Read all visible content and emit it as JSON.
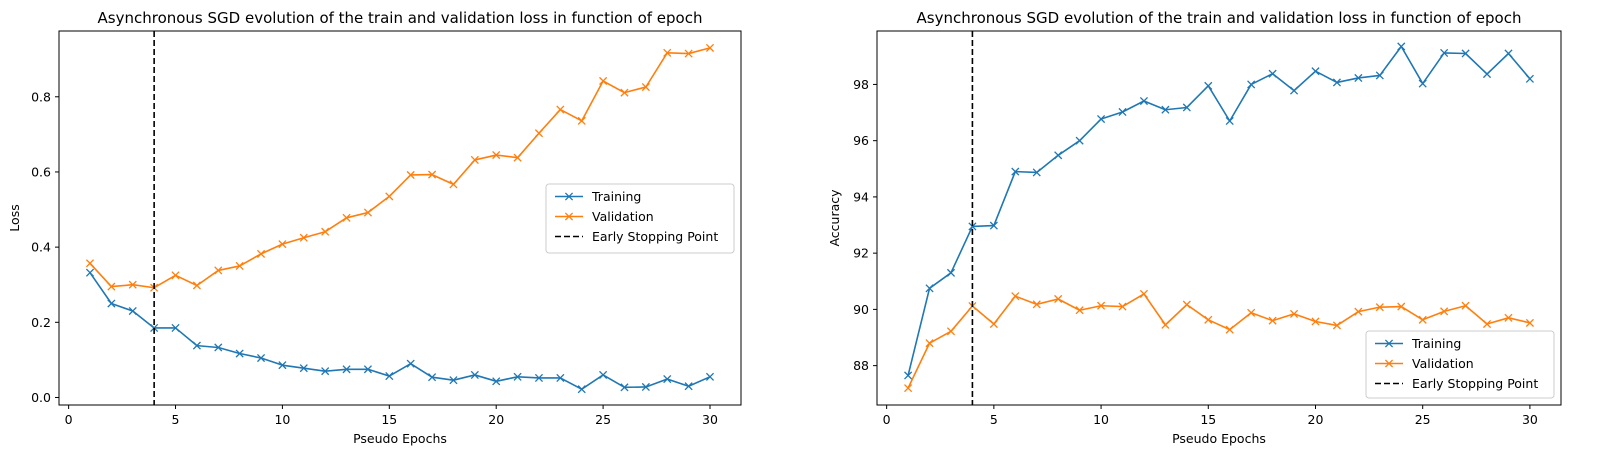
{
  "chart_data": [
    {
      "type": "line",
      "title": "Asynchronous SGD evolution of the train and validation loss in function of epoch",
      "xlabel": "Pseudo Epochs",
      "ylabel": "Loss",
      "xlim": [
        -0.45,
        31.45
      ],
      "ylim": [
        -0.02,
        0.975
      ],
      "xticks": [
        0,
        5,
        10,
        15,
        20,
        25,
        30
      ],
      "yticks": [
        0.0,
        0.2,
        0.4,
        0.6,
        0.8
      ],
      "ytick_labels": [
        "0.0",
        "0.2",
        "0.4",
        "0.6",
        "0.8"
      ],
      "x": [
        1,
        2,
        3,
        4,
        5,
        6,
        7,
        8,
        9,
        10,
        11,
        12,
        13,
        14,
        15,
        16,
        17,
        18,
        19,
        20,
        21,
        22,
        23,
        24,
        25,
        26,
        27,
        28,
        29,
        30
      ],
      "series": [
        {
          "name": "Training",
          "color": "#1f77b4",
          "values": [
            0.332,
            0.25,
            0.23,
            0.185,
            0.185,
            0.138,
            0.133,
            0.117,
            0.105,
            0.086,
            0.078,
            0.07,
            0.075,
            0.075,
            0.057,
            0.09,
            0.054,
            0.046,
            0.06,
            0.043,
            0.055,
            0.052,
            0.052,
            0.022,
            0.06,
            0.027,
            0.028,
            0.049,
            0.03,
            0.055
          ]
        },
        {
          "name": "Validation",
          "color": "#ff7f0e",
          "values": [
            0.357,
            0.295,
            0.3,
            0.292,
            0.325,
            0.298,
            0.338,
            0.35,
            0.382,
            0.408,
            0.425,
            0.441,
            0.478,
            0.492,
            0.535,
            0.592,
            0.593,
            0.567,
            0.632,
            0.645,
            0.638,
            0.703,
            0.766,
            0.736,
            0.842,
            0.811,
            0.826,
            0.917,
            0.915,
            0.93
          ]
        }
      ],
      "vline": {
        "x": 4,
        "name": "Early Stopping Point",
        "color": "#000000"
      },
      "legend": {
        "placement": "center-right",
        "entries": [
          "Training",
          "Validation",
          "Early Stopping Point"
        ]
      },
      "grid": false
    },
    {
      "type": "line",
      "title": "Asynchronous SGD evolution of the train and validation loss in function of epoch",
      "xlabel": "Pseudo Epochs",
      "ylabel": "Accuracy",
      "xlim": [
        -0.45,
        31.45
      ],
      "ylim": [
        86.6,
        99.9
      ],
      "xticks": [
        0,
        5,
        10,
        15,
        20,
        25,
        30
      ],
      "yticks": [
        88,
        90,
        92,
        94,
        96,
        98
      ],
      "ytick_labels": [
        "88",
        "90",
        "92",
        "94",
        "96",
        "98"
      ],
      "x": [
        1,
        2,
        3,
        4,
        5,
        6,
        7,
        8,
        9,
        10,
        11,
        12,
        13,
        14,
        15,
        16,
        17,
        18,
        19,
        20,
        21,
        22,
        23,
        24,
        25,
        26,
        27,
        28,
        29,
        30
      ],
      "series": [
        {
          "name": "Training",
          "color": "#1f77b4",
          "values": [
            87.65,
            90.75,
            91.3,
            92.95,
            92.98,
            94.9,
            94.87,
            95.48,
            96.0,
            96.77,
            97.02,
            97.41,
            97.1,
            97.18,
            97.95,
            96.7,
            98.0,
            98.38,
            97.78,
            98.47,
            98.07,
            98.23,
            98.32,
            99.35,
            98.03,
            99.12,
            99.1,
            98.37,
            99.1,
            98.2
          ]
        },
        {
          "name": "Validation",
          "color": "#ff7f0e",
          "values": [
            87.2,
            88.8,
            89.22,
            90.12,
            89.48,
            90.47,
            90.18,
            90.37,
            89.97,
            90.13,
            90.1,
            90.55,
            89.45,
            90.17,
            89.63,
            89.28,
            89.88,
            89.6,
            89.84,
            89.57,
            89.43,
            89.92,
            90.08,
            90.1,
            89.63,
            89.93,
            90.13,
            89.48,
            89.7,
            89.52
          ]
        }
      ],
      "vline": {
        "x": 4,
        "name": "Early Stopping Point",
        "color": "#000000"
      },
      "legend": {
        "placement": "lower-right",
        "entries": [
          "Training",
          "Validation",
          "Early Stopping Point"
        ]
      },
      "grid": false
    }
  ]
}
